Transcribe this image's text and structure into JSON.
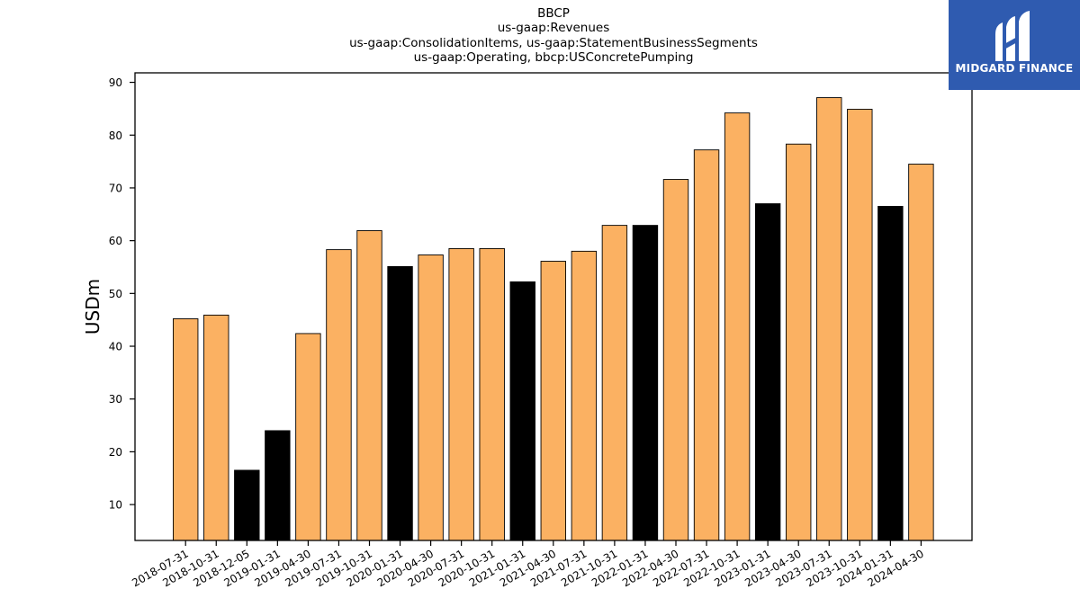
{
  "titles": [
    "BBCP",
    "us-gaap:Revenues",
    "us-gaap:ConsolidationItems, us-gaap:StatementBusinessSegments",
    "us-gaap:Operating, bbcp:USConcretePumping"
  ],
  "logo": {
    "text": "MIDGARD FINANCE",
    "background": "#2f5bb0"
  },
  "colors": {
    "quarter_bar": "#fbb162",
    "annual_bar": "#000000",
    "edge": "#000000"
  },
  "chart_data": {
    "type": "bar",
    "title": "BBCP",
    "subtitle": "us-gaap:Revenues | us-gaap:ConsolidationItems, us-gaap:StatementBusinessSegments | us-gaap:Operating, bbcp:USConcretePumping",
    "xlabel": "",
    "ylabel": "USDm",
    "ylim": [
      3.2,
      91.8
    ],
    "yticks": [
      10,
      20,
      30,
      40,
      50,
      60,
      70,
      80,
      90
    ],
    "grid": false,
    "categories": [
      "2018-07-31",
      "2018-10-31",
      "2018-12-05",
      "2019-01-31",
      "2019-04-30",
      "2019-07-31",
      "2019-10-31",
      "2020-01-31",
      "2020-04-30",
      "2020-07-31",
      "2020-10-31",
      "2021-01-31",
      "2021-04-30",
      "2021-07-31",
      "2021-10-31",
      "2022-01-31",
      "2022-04-30",
      "2022-07-31",
      "2022-10-31",
      "2023-01-31",
      "2023-04-30",
      "2023-07-31",
      "2023-10-31",
      "2024-01-31",
      "2024-04-30"
    ],
    "values": [
      45.2,
      45.9,
      16.5,
      24.0,
      42.4,
      58.3,
      61.9,
      55.1,
      57.3,
      58.5,
      58.5,
      52.2,
      56.1,
      58.0,
      62.9,
      62.9,
      71.6,
      77.2,
      84.2,
      67.0,
      78.3,
      87.1,
      84.9,
      66.5,
      74.5
    ],
    "bar_kind": [
      "quarter",
      "quarter",
      "annual",
      "annual",
      "quarter",
      "quarter",
      "quarter",
      "annual",
      "quarter",
      "quarter",
      "quarter",
      "annual",
      "quarter",
      "quarter",
      "quarter",
      "annual",
      "quarter",
      "quarter",
      "quarter",
      "annual",
      "quarter",
      "quarter",
      "quarter",
      "annual",
      "quarter"
    ]
  }
}
